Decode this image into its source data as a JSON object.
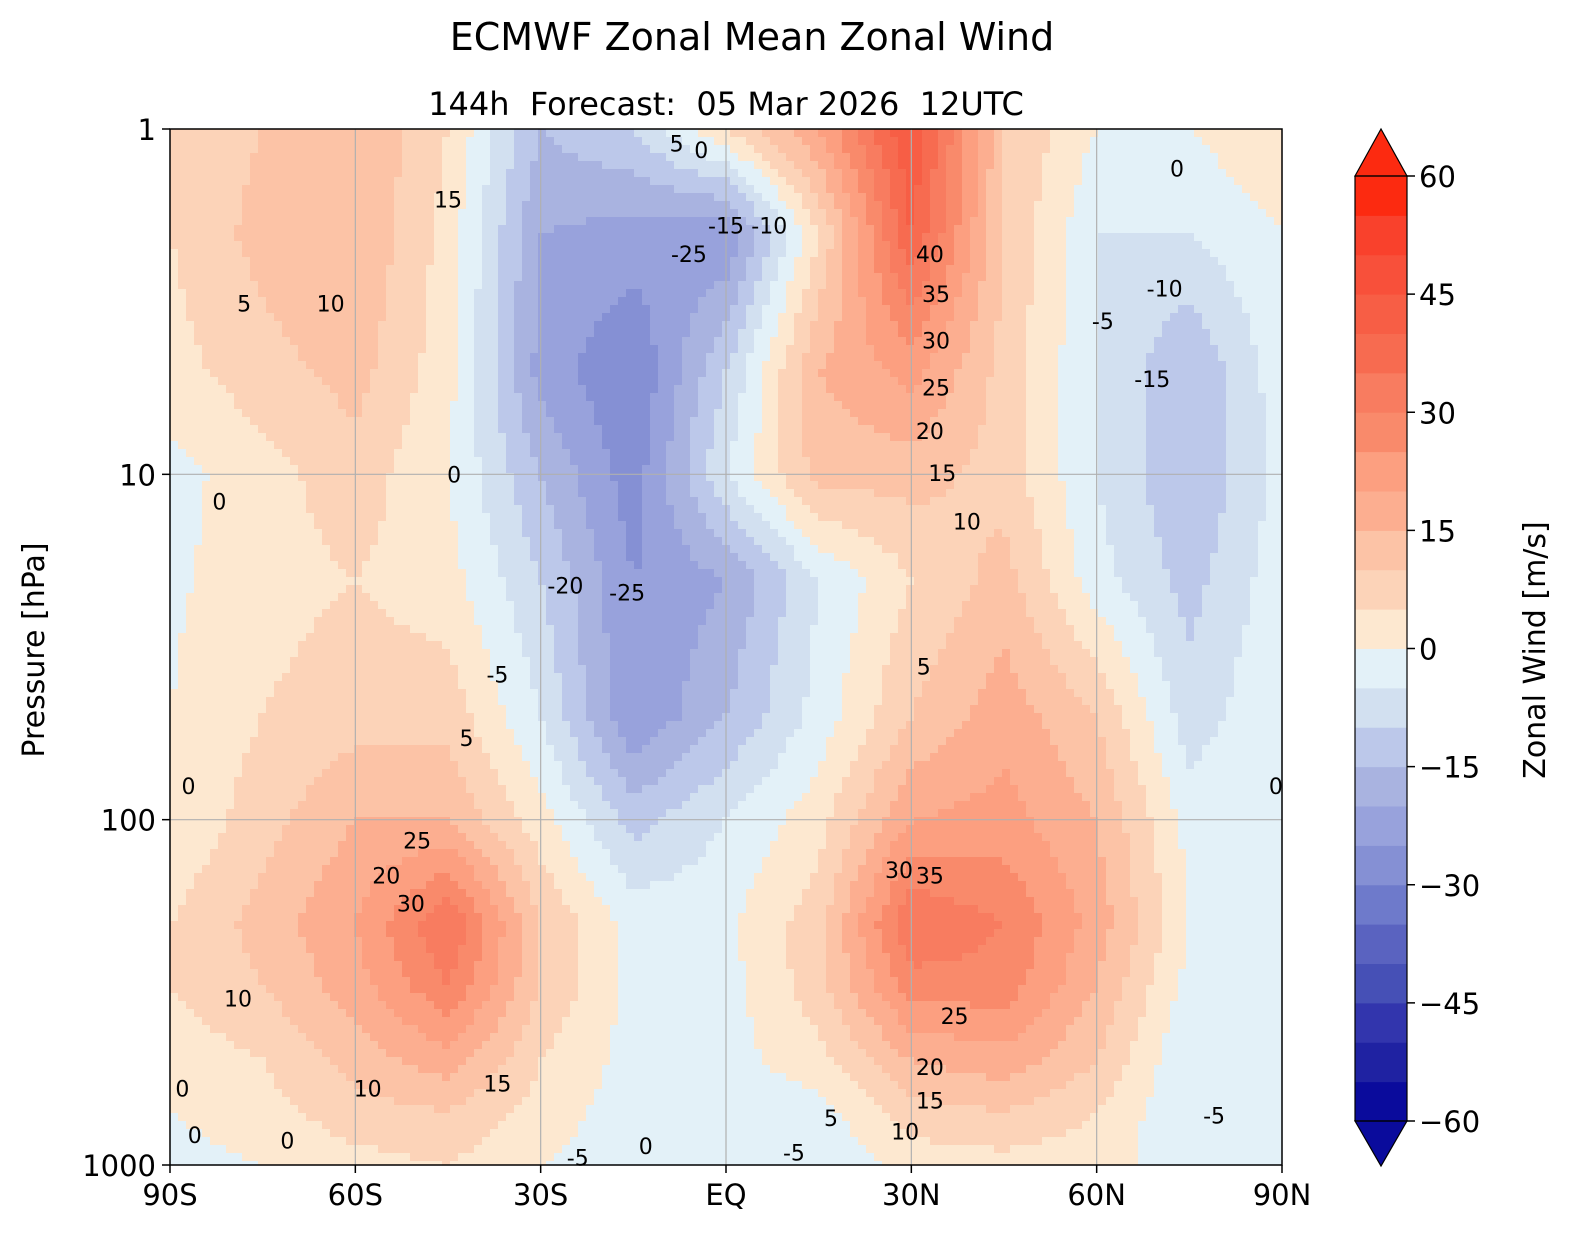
{
  "chart_data": {
    "type": "heatmap",
    "title": "ECMWF Zonal Mean Zonal Wind",
    "subtitle": "144h  Forecast:  05 Mar 2026  12UTC",
    "xlabel": "",
    "ylabel": "Pressure [hPa]",
    "colorbar_label": "Zonal Wind [m/s]",
    "xlim": [
      -90,
      90
    ],
    "ylim": [
      1000,
      1
    ],
    "yscale": "log",
    "grid": true,
    "x_ticks": [
      {
        "value": -90,
        "label": "90S"
      },
      {
        "value": -60,
        "label": "60S"
      },
      {
        "value": -30,
        "label": "30S"
      },
      {
        "value": 0,
        "label": "EQ"
      },
      {
        "value": 30,
        "label": "30N"
      },
      {
        "value": 60,
        "label": "60N"
      },
      {
        "value": 90,
        "label": "90N"
      }
    ],
    "y_ticks": [
      {
        "value": 1,
        "label": "1"
      },
      {
        "value": 10,
        "label": "10"
      },
      {
        "value": 100,
        "label": "100"
      },
      {
        "value": 1000,
        "label": "1000"
      }
    ],
    "colorbar_ticks": [
      {
        "value": 60,
        "label": "60"
      },
      {
        "value": 45,
        "label": "45"
      },
      {
        "value": 30,
        "label": "30"
      },
      {
        "value": 15,
        "label": "15"
      },
      {
        "value": 0,
        "label": "0"
      },
      {
        "value": -15,
        "label": "−15"
      },
      {
        "value": -30,
        "label": "−30"
      },
      {
        "value": -45,
        "label": "−45"
      },
      {
        "value": -60,
        "label": "−60"
      }
    ],
    "levels": [
      -60,
      -55,
      -50,
      -45,
      -40,
      -35,
      -30,
      -25,
      -20,
      -15,
      -10,
      -5,
      0,
      5,
      10,
      15,
      20,
      25,
      30,
      35,
      40,
      45,
      50,
      55,
      60
    ],
    "band_colors": [
      "#0a0b9c",
      "#1f22a2",
      "#3235ad",
      "#4650b6",
      "#5a63c0",
      "#6e7acb",
      "#8590d4",
      "#98a2dc",
      "#a9b3e0",
      "#bcc8ea",
      "#d2e0f0",
      "#e3f1f8",
      "#fde8d0",
      "#fcd3b8",
      "#fcc3a6",
      "#fcae90",
      "#fc9f80",
      "#f98a6b",
      "#f87c60",
      "#f76b50",
      "#f75e45",
      "#f8503a",
      "#f9412c",
      "#fc2a10"
    ],
    "latitudes": [
      -90,
      -75,
      -60,
      -45,
      -30,
      -15,
      0,
      15,
      30,
      45,
      60,
      75,
      90
    ],
    "pressures": [
      1,
      2,
      5,
      10,
      20,
      50,
      100,
      200,
      300,
      500,
      700,
      1000
    ],
    "values": [
      [
        5,
        10,
        15,
        5,
        -15,
        -10,
        5,
        20,
        45,
        10,
        0,
        0,
        5
      ],
      [
        5,
        12,
        15,
        3,
        -20,
        -22,
        -25,
        5,
        40,
        10,
        -5,
        -5,
        0
      ],
      [
        3,
        8,
        12,
        2,
        -22,
        -30,
        -10,
        15,
        22,
        8,
        -5,
        -15,
        -2
      ],
      [
        -2,
        3,
        8,
        0,
        -15,
        -28,
        -5,
        12,
        12,
        8,
        -5,
        -15,
        -3
      ],
      [
        -1,
        3,
        5,
        2,
        -10,
        -25,
        -20,
        -5,
        5,
        12,
        -3,
        -12,
        -2
      ],
      [
        0,
        5,
        8,
        8,
        -5,
        -25,
        -15,
        -3,
        10,
        18,
        10,
        -8,
        0
      ],
      [
        0,
        8,
        15,
        15,
        2,
        -12,
        -5,
        3,
        20,
        22,
        15,
        -2,
        0
      ],
      [
        5,
        12,
        20,
        35,
        10,
        -2,
        -1,
        8,
        35,
        30,
        18,
        0,
        -3
      ],
      [
        5,
        10,
        18,
        30,
        10,
        -2,
        -2,
        8,
        28,
        28,
        15,
        -2,
        -5
      ],
      [
        2,
        5,
        12,
        18,
        5,
        -2,
        -2,
        3,
        15,
        18,
        10,
        -5,
        -5
      ],
      [
        0,
        3,
        8,
        10,
        3,
        -3,
        -3,
        -2,
        8,
        10,
        5,
        -5,
        -5
      ],
      [
        -2,
        0,
        3,
        5,
        0,
        -3,
        -3,
        -5,
        2,
        3,
        2,
        -3,
        -3
      ]
    ],
    "contour_labels": [
      {
        "lat": -45,
        "p": 1.6,
        "label": "15"
      },
      {
        "lat": -64,
        "p": 3.2,
        "label": "10"
      },
      {
        "lat": -78,
        "p": 3.2,
        "label": "5"
      },
      {
        "lat": -82,
        "p": 12,
        "label": "0"
      },
      {
        "lat": -44,
        "p": 10,
        "label": "0"
      },
      {
        "lat": -8,
        "p": 1.1,
        "label": "5"
      },
      {
        "lat": -4,
        "p": 1.15,
        "label": "0"
      },
      {
        "lat": 0,
        "p": 1.9,
        "label": "-15"
      },
      {
        "lat": 7,
        "p": 1.9,
        "label": "-10"
      },
      {
        "lat": -6,
        "p": 2.3,
        "label": "-25"
      },
      {
        "lat": 33,
        "p": 2.3,
        "label": "40"
      },
      {
        "lat": 34,
        "p": 3.0,
        "label": "35"
      },
      {
        "lat": 34,
        "p": 4.1,
        "label": "30"
      },
      {
        "lat": 34,
        "p": 5.6,
        "label": "25"
      },
      {
        "lat": 33,
        "p": 7.5,
        "label": "20"
      },
      {
        "lat": 35,
        "p": 9.9,
        "label": "15"
      },
      {
        "lat": 39,
        "p": 13.7,
        "label": "10"
      },
      {
        "lat": 73,
        "p": 1.3,
        "label": "0"
      },
      {
        "lat": 61,
        "p": 3.6,
        "label": "-5"
      },
      {
        "lat": 71,
        "p": 2.9,
        "label": "-10"
      },
      {
        "lat": 69,
        "p": 5.3,
        "label": "-15"
      },
      {
        "lat": -26,
        "p": 21,
        "label": "-20"
      },
      {
        "lat": -16,
        "p": 22,
        "label": "-25"
      },
      {
        "lat": -37,
        "p": 38,
        "label": "-5"
      },
      {
        "lat": -42,
        "p": 58,
        "label": "5"
      },
      {
        "lat": 32,
        "p": 36,
        "label": "5"
      },
      {
        "lat": -87,
        "p": 80,
        "label": "0"
      },
      {
        "lat": -50,
        "p": 115,
        "label": "25"
      },
      {
        "lat": -55,
        "p": 145,
        "label": "20"
      },
      {
        "lat": -51,
        "p": 175,
        "label": "30"
      },
      {
        "lat": 28,
        "p": 140,
        "label": "30"
      },
      {
        "lat": 33,
        "p": 145,
        "label": "35"
      },
      {
        "lat": 37,
        "p": 370,
        "label": "25"
      },
      {
        "lat": 33,
        "p": 520,
        "label": "20"
      },
      {
        "lat": 33,
        "p": 650,
        "label": "15"
      },
      {
        "lat": 29,
        "p": 800,
        "label": "10"
      },
      {
        "lat": 17,
        "p": 730,
        "label": "5"
      },
      {
        "lat": -79,
        "p": 330,
        "label": "10"
      },
      {
        "lat": -58,
        "p": 600,
        "label": "10"
      },
      {
        "lat": -37,
        "p": 580,
        "label": "15"
      },
      {
        "lat": -88,
        "p": 600,
        "label": "0"
      },
      {
        "lat": -86,
        "p": 820,
        "label": "0"
      },
      {
        "lat": -71,
        "p": 850,
        "label": "0"
      },
      {
        "lat": -13,
        "p": 880,
        "label": "0"
      },
      {
        "lat": 11,
        "p": 920,
        "label": "-5"
      },
      {
        "lat": -24,
        "p": 950,
        "label": "-5"
      },
      {
        "lat": 79,
        "p": 720,
        "label": "-5"
      },
      {
        "lat": 89,
        "p": 80,
        "label": "0"
      }
    ]
  }
}
